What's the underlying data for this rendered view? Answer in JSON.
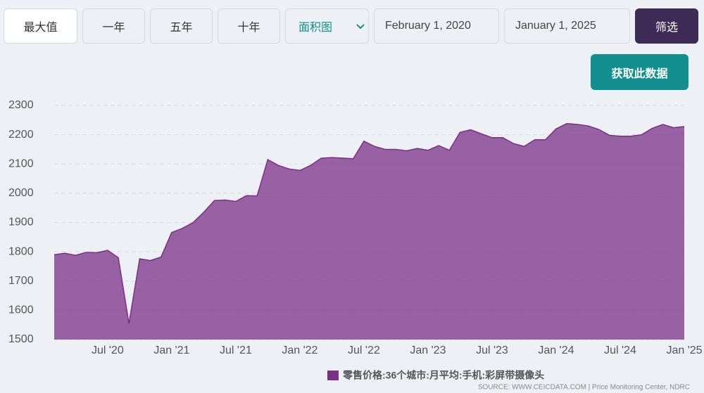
{
  "toolbar": {
    "buttons": [
      "最大值",
      "一年",
      "五年",
      "十年"
    ],
    "chart_type": "面积图",
    "start_date": "February 1, 2020",
    "end_date": "January 1, 2025",
    "filter": "筛选",
    "get_data": "获取此数据"
  },
  "chart_data": {
    "type": "area",
    "categories": [
      null,
      null,
      null,
      null,
      null,
      "Jul '20",
      null,
      null,
      null,
      null,
      null,
      "Jan '21",
      null,
      null,
      null,
      null,
      null,
      "Jul '21",
      null,
      null,
      null,
      null,
      null,
      "Jan '22",
      null,
      null,
      null,
      null,
      null,
      "Jul '22",
      null,
      null,
      null,
      null,
      null,
      "Jan '23",
      null,
      null,
      null,
      null,
      null,
      "Jul '23",
      null,
      null,
      null,
      null,
      null,
      "Jan '24",
      null,
      null,
      null,
      null,
      null,
      "Jul '24",
      null,
      null,
      null,
      null,
      null,
      "Jan '25"
    ],
    "series": [
      {
        "name": "零售价格:36个城市:月平均:手机:彩屏带摄像头",
        "color": "#7b3088",
        "values": [
          1790,
          1795,
          1788,
          1798,
          1797,
          1805,
          1780,
          1555,
          1776,
          1770,
          1782,
          1866,
          1880,
          1900,
          1935,
          1975,
          1977,
          1972,
          1992,
          1991,
          2115,
          2095,
          2083,
          2078,
          2095,
          2120,
          2122,
          2120,
          2118,
          2178,
          2160,
          2150,
          2150,
          2145,
          2153,
          2147,
          2163,
          2147,
          2208,
          2217,
          2203,
          2190,
          2190,
          2170,
          2160,
          2183,
          2183,
          2220,
          2238,
          2235,
          2230,
          2218,
          2198,
          2195,
          2195,
          2200,
          2222,
          2235,
          2224,
          2228
        ]
      }
    ],
    "ylim": [
      1500,
      2300
    ],
    "yticks": [
      1500,
      1600,
      1700,
      1800,
      1900,
      2000,
      2100,
      2200,
      2300
    ],
    "grid": true,
    "source": "SOURCE: WWW.CEICDATA.COM | Price Monitoring Center, NDRC"
  }
}
